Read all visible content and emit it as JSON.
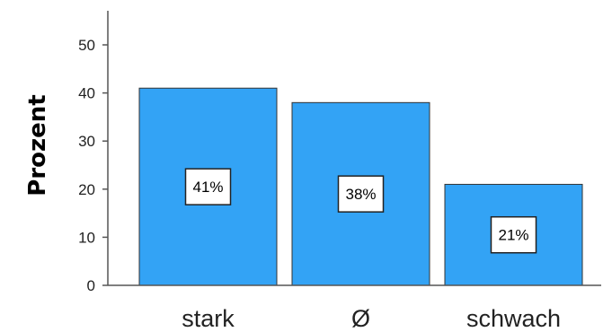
{
  "chart_data": {
    "type": "bar",
    "title": "",
    "xlabel": "",
    "ylabel": "Prozent",
    "categories": [
      "stark",
      "Ø",
      "schwach"
    ],
    "values": [
      41,
      38,
      21
    ],
    "data_labels": [
      "41%",
      "38%",
      "21%"
    ],
    "ylim": [
      0,
      55
    ],
    "yticks": [
      0,
      10,
      20,
      30,
      40,
      50
    ],
    "grid": false,
    "legend": "none",
    "bar_color": "#33A3F5"
  }
}
